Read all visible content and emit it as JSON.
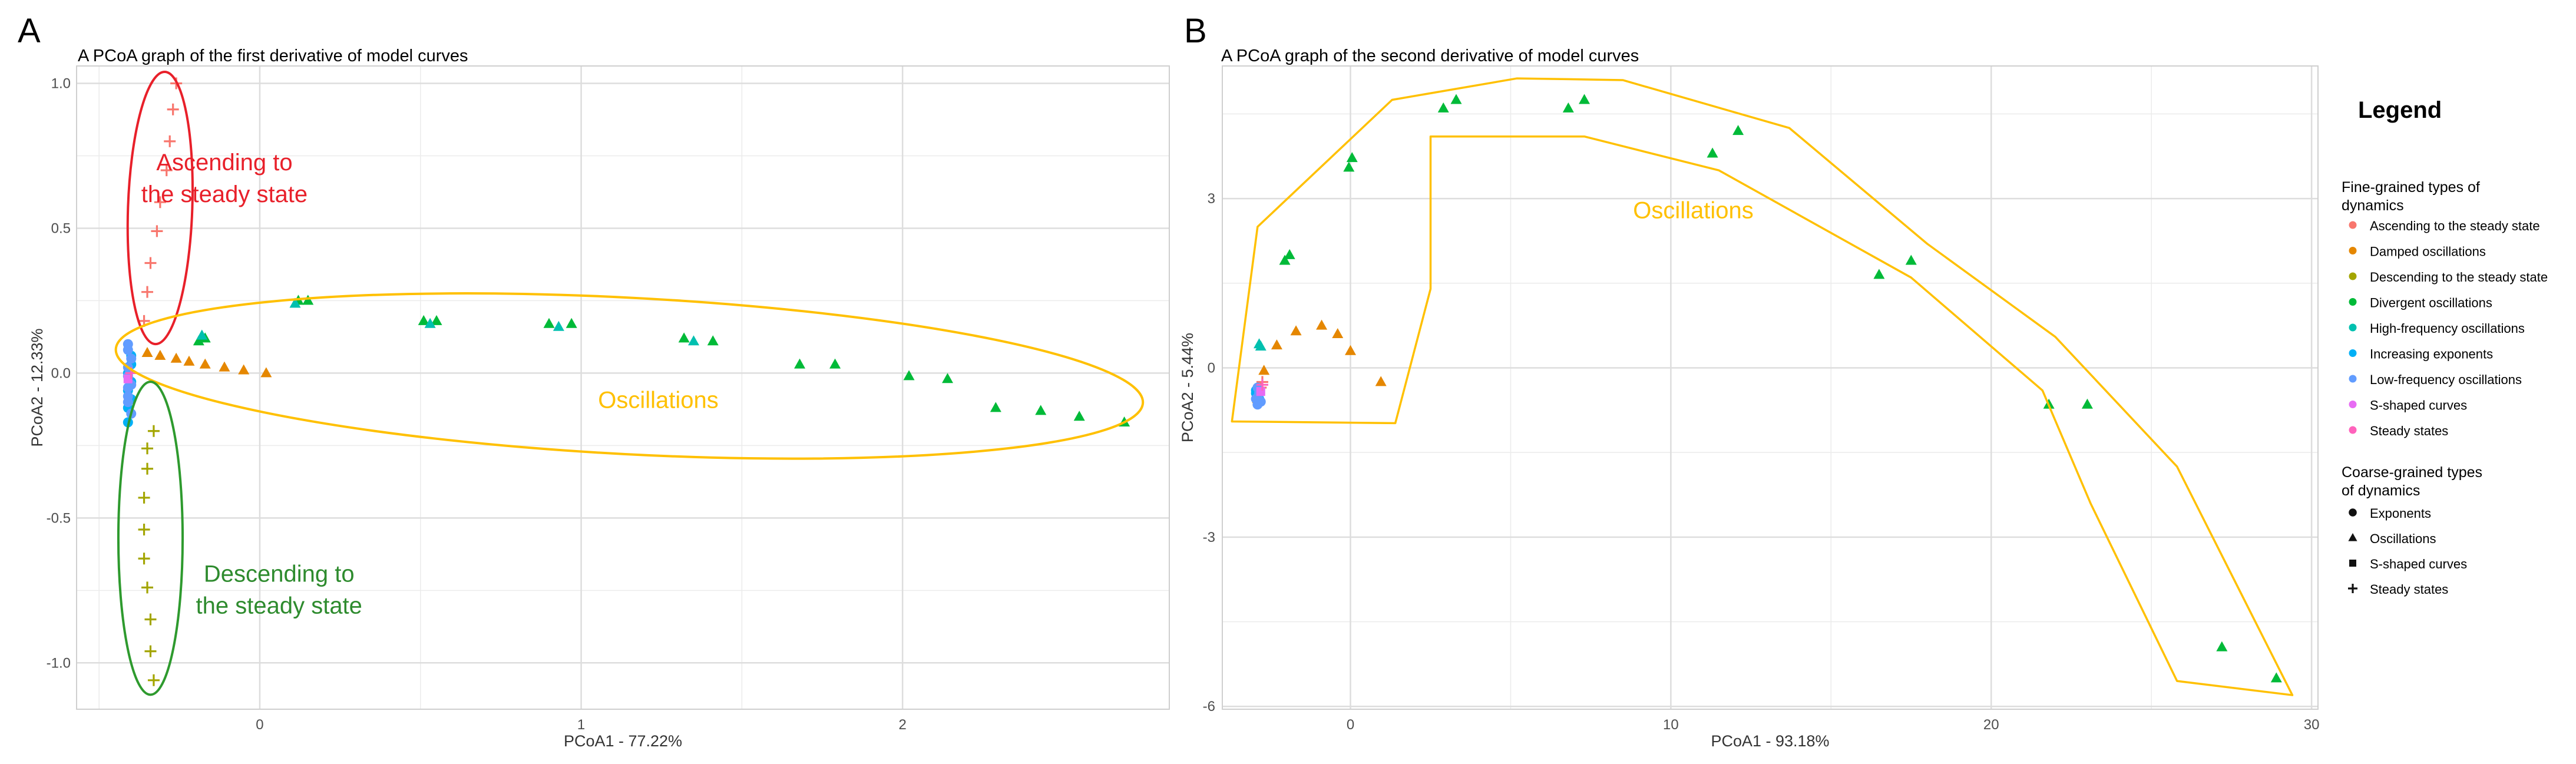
{
  "panels": [
    {
      "letter": "A",
      "title": "A PCoA graph of the first derivative of model curves"
    },
    {
      "letter": "B",
      "title": "A PCoA graph of the second derivative of model curves"
    }
  ],
  "colors": {
    "ascending": "#F8766D",
    "damped": "#E58700",
    "descending": "#A3A500",
    "divergent": "#00BA38",
    "highfreq": "#00C0AF",
    "increasing": "#00B0F6",
    "lowfreq": "#619CFF",
    "sshaped": "#E76BF3",
    "steady": "#FF62BC",
    "outline_red": "#E8202A",
    "outline_yellow": "#FFC000",
    "outline_green": "#2E9A2E",
    "label_red": "#E8202A",
    "label_yellow": "#FFC000",
    "label_green": "#2E8B2E",
    "grid": "#EBEBEB",
    "axis_text": "#4D4D4D"
  },
  "legend": {
    "title": "Legend",
    "fine_title_line1": "Fine-grained types of",
    "fine_title_line2": "dynamics",
    "fine_items": [
      {
        "label": "Ascending to the steady state",
        "color_key": "ascending"
      },
      {
        "label": "Damped oscillations",
        "color_key": "damped"
      },
      {
        "label": "Descending to the steady state",
        "color_key": "descending"
      },
      {
        "label": "Divergent oscillations",
        "color_key": "divergent"
      },
      {
        "label": "High-frequency oscillations",
        "color_key": "highfreq"
      },
      {
        "label": "Increasing exponents",
        "color_key": "increasing"
      },
      {
        "label": "Low-frequency oscillations",
        "color_key": "lowfreq"
      },
      {
        "label": "S-shaped curves",
        "color_key": "sshaped"
      },
      {
        "label": "Steady states",
        "color_key": "steady"
      }
    ],
    "coarse_title_line1": "Coarse-grained types",
    "coarse_title_line2": "of dynamics",
    "coarse_items": [
      {
        "label": "Exponents",
        "shape": "circle"
      },
      {
        "label": "Oscillations",
        "shape": "triangle"
      },
      {
        "label": "S-shaped curves",
        "shape": "square"
      },
      {
        "label": "Steady states",
        "shape": "plus"
      }
    ]
  },
  "chart_data": [
    {
      "type": "scatter",
      "title": "A PCoA graph of the first derivative of model curves",
      "xlabel": "PCoA1 - 77.22%",
      "ylabel": "PCoA2 - 12.33%",
      "xlim": [
        -0.57,
        2.83
      ],
      "ylim": [
        -1.16,
        1.06
      ],
      "xticks": [
        0,
        1,
        2
      ],
      "xtick_labels": [
        "0",
        "1",
        "2"
      ],
      "yticks": [
        -1.0,
        -0.5,
        0.0,
        0.5,
        1.0
      ],
      "ytick_labels": [
        "-1.0",
        "-0.5",
        "0.0",
        "0.5",
        "1.0"
      ],
      "annotations": [
        {
          "line1": "Ascending to",
          "line2": "the steady state",
          "color_key": "label_red",
          "x": -0.11,
          "y": 0.7
        },
        {
          "line1": "Oscillations",
          "line2": "",
          "color_key": "label_yellow",
          "x": 1.24,
          "y": -0.12
        },
        {
          "line1": "Descending to",
          "line2": "the steady state",
          "color_key": "label_green",
          "x": 0.06,
          "y": -0.72
        }
      ],
      "outlines": [
        {
          "kind": "ellipse",
          "color_key": "outline_red",
          "cx": -0.31,
          "cy": 0.57,
          "rx": 0.1,
          "ry": 0.47,
          "rotate": 2
        },
        {
          "kind": "ellipse",
          "color_key": "outline_yellow",
          "cx": 1.15,
          "cy": -0.01,
          "rx": 1.6,
          "ry": 0.27,
          "rotate": 3
        },
        {
          "kind": "ellipse",
          "color_key": "outline_green",
          "cx": -0.34,
          "cy": -0.57,
          "rx": 0.1,
          "ry": 0.54,
          "rotate": 0
        }
      ],
      "series": [
        {
          "name": "Ascending to the steady state",
          "color_key": "ascending",
          "shape": "plus",
          "x": [
            -0.26,
            -0.27,
            -0.28,
            -0.29,
            -0.31,
            -0.32,
            -0.34,
            -0.35,
            -0.36
          ],
          "y": [
            1.0,
            0.91,
            0.8,
            0.7,
            0.59,
            0.49,
            0.38,
            0.28,
            0.18
          ]
        },
        {
          "name": "Descending to the steady state",
          "color_key": "descending",
          "shape": "plus",
          "x": [
            -0.35,
            -0.35,
            -0.36,
            -0.36,
            -0.36,
            -0.35,
            -0.34,
            -0.34,
            -0.33,
            -0.33
          ],
          "y": [
            -0.26,
            -0.33,
            -0.43,
            -0.54,
            -0.64,
            -0.74,
            -0.85,
            -0.96,
            -1.06,
            -0.2
          ]
        },
        {
          "name": "Damped oscillations",
          "color_key": "damped",
          "shape": "triangle",
          "x": [
            -0.35,
            -0.31,
            -0.26,
            -0.22,
            -0.17,
            -0.11,
            -0.05,
            0.02
          ],
          "y": [
            0.07,
            0.06,
            0.05,
            0.04,
            0.03,
            0.02,
            0.01,
            0.0
          ]
        },
        {
          "name": "Divergent oscillations",
          "color_key": "divergent",
          "shape": "triangle",
          "x": [
            -0.19,
            -0.17,
            0.12,
            0.15,
            0.51,
            0.55,
            0.9,
            0.97,
            1.32,
            1.41,
            1.68,
            1.79,
            2.02,
            2.14,
            2.29,
            2.43,
            2.55,
            2.69
          ],
          "y": [
            0.11,
            0.12,
            0.25,
            0.25,
            0.18,
            0.18,
            0.17,
            0.17,
            0.12,
            0.11,
            0.03,
            0.03,
            -0.01,
            -0.02,
            -0.12,
            -0.13,
            -0.15,
            -0.17
          ]
        },
        {
          "name": "High-frequency oscillations",
          "color_key": "highfreq",
          "shape": "triangle",
          "x": [
            -0.18,
            0.11,
            0.53,
            0.93,
            1.35
          ],
          "y": [
            0.13,
            0.24,
            0.17,
            0.16,
            0.11
          ]
        },
        {
          "name": "Increasing exponents",
          "color_key": "increasing",
          "shape": "circle",
          "x": [
            -0.4,
            -0.4,
            -0.41,
            -0.4,
            -0.41,
            -0.4,
            -0.41,
            -0.41
          ],
          "y": [
            0.06,
            0.03,
            0.0,
            -0.03,
            -0.06,
            -0.09,
            -0.12,
            -0.17
          ]
        },
        {
          "name": "Low-frequency oscillations",
          "color_key": "lowfreq",
          "shape": "circle",
          "x": [
            -0.41,
            -0.41,
            -0.4,
            -0.41,
            -0.41,
            -0.4,
            -0.41,
            -0.41,
            -0.41,
            -0.4
          ],
          "y": [
            0.1,
            0.08,
            0.05,
            0.02,
            -0.01,
            -0.04,
            -0.05,
            -0.08,
            -0.1,
            -0.14
          ]
        },
        {
          "name": "S-shaped curves",
          "color_key": "sshaped",
          "shape": "square",
          "x": [
            -0.41
          ],
          "y": [
            -0.02
          ]
        },
        {
          "name": "Steady states",
          "color_key": "steady",
          "shape": "plus",
          "x": [
            -0.4
          ],
          "y": [
            0.0
          ]
        }
      ]
    },
    {
      "type": "scatter",
      "title": "A PCoA graph of the second derivative of model curves",
      "xlabel": "PCoA1 - 93.18%",
      "ylabel": "PCoA2 - 5.44%",
      "xlim": [
        -4.0,
        30.2
      ],
      "ylim": [
        -6.05,
        5.35
      ],
      "xticks": [
        0,
        10,
        20,
        30
      ],
      "xtick_labels": [
        "0",
        "10",
        "20",
        "30"
      ],
      "yticks": [
        -6,
        -3,
        0,
        3
      ],
      "ytick_labels": [
        "-6",
        "-3",
        "0",
        "3"
      ],
      "annotations": [
        {
          "line1": "Oscillations",
          "line2": "",
          "color_key": "label_yellow",
          "x": 10.7,
          "y": 2.65
        }
      ],
      "outlines": [
        {
          "kind": "polygon",
          "color_key": "outline_yellow",
          "points": [
            [
              -3.7,
              -0.95
            ],
            [
              1.4,
              -0.98
            ],
            [
              2.5,
              1.4
            ],
            [
              2.5,
              4.1
            ],
            [
              7.3,
              4.1
            ],
            [
              11.5,
              3.5
            ],
            [
              17.5,
              1.6
            ],
            [
              21.6,
              -0.4
            ],
            [
              23.1,
              -2.4
            ],
            [
              25.8,
              -5.55
            ],
            [
              29.4,
              -5.8
            ],
            [
              25.8,
              -1.75
            ],
            [
              22.0,
              0.55
            ],
            [
              18.0,
              2.2
            ],
            [
              13.7,
              4.25
            ],
            [
              8.5,
              5.1
            ],
            [
              5.2,
              5.13
            ],
            [
              1.3,
              4.75
            ],
            [
              -2.9,
              2.5
            ]
          ]
        }
      ],
      "series": [
        {
          "name": "Ascending to the steady state",
          "color_key": "ascending",
          "shape": "plus",
          "x": [
            -2.75,
            -2.8,
            -2.85
          ],
          "y": [
            -0.25,
            -0.35,
            -0.45
          ]
        },
        {
          "name": "Damped oscillations",
          "color_key": "damped",
          "shape": "triangle",
          "x": [
            -2.9,
            -2.7,
            -2.3,
            -1.7,
            -0.9,
            -0.4,
            0.0,
            0.95
          ],
          "y": [
            -0.55,
            -0.05,
            0.4,
            0.65,
            0.75,
            0.6,
            0.3,
            -0.25
          ]
        },
        {
          "name": "Divergent oscillations",
          "color_key": "divergent",
          "shape": "triangle",
          "x": [
            -1.9,
            -2.05,
            -0.05,
            0.05,
            2.9,
            3.3,
            6.8,
            7.3,
            11.3,
            12.1,
            16.5,
            17.5,
            21.8,
            23.0,
            27.2,
            28.9
          ],
          "y": [
            2.0,
            1.9,
            3.55,
            3.72,
            4.6,
            4.75,
            4.6,
            4.75,
            3.8,
            4.2,
            1.65,
            1.9,
            -0.65,
            -0.65,
            -4.95,
            -5.5
          ]
        },
        {
          "name": "High-frequency oscillations",
          "color_key": "highfreq",
          "shape": "triangle",
          "x": [
            -2.85,
            -2.8
          ],
          "y": [
            0.42,
            0.38
          ]
        },
        {
          "name": "Increasing exponents",
          "color_key": "increasing",
          "shape": "circle",
          "x": [
            -2.95,
            -2.9,
            -2.85,
            -2.95
          ],
          "y": [
            -0.4,
            -0.5,
            -0.55,
            -0.45
          ]
        },
        {
          "name": "Low-frequency oscillations",
          "color_key": "lowfreq",
          "shape": "circle",
          "x": [
            -2.9,
            -2.85,
            -2.95,
            -2.8,
            -2.9
          ],
          "y": [
            -0.35,
            -0.45,
            -0.55,
            -0.6,
            -0.65
          ]
        },
        {
          "name": "S-shaped curves",
          "color_key": "sshaped",
          "shape": "square",
          "x": [
            -2.8
          ],
          "y": [
            -0.42
          ]
        },
        {
          "name": "Steady states",
          "color_key": "steady",
          "shape": "plus",
          "x": [
            -2.75
          ],
          "y": [
            -0.3
          ]
        }
      ]
    }
  ]
}
